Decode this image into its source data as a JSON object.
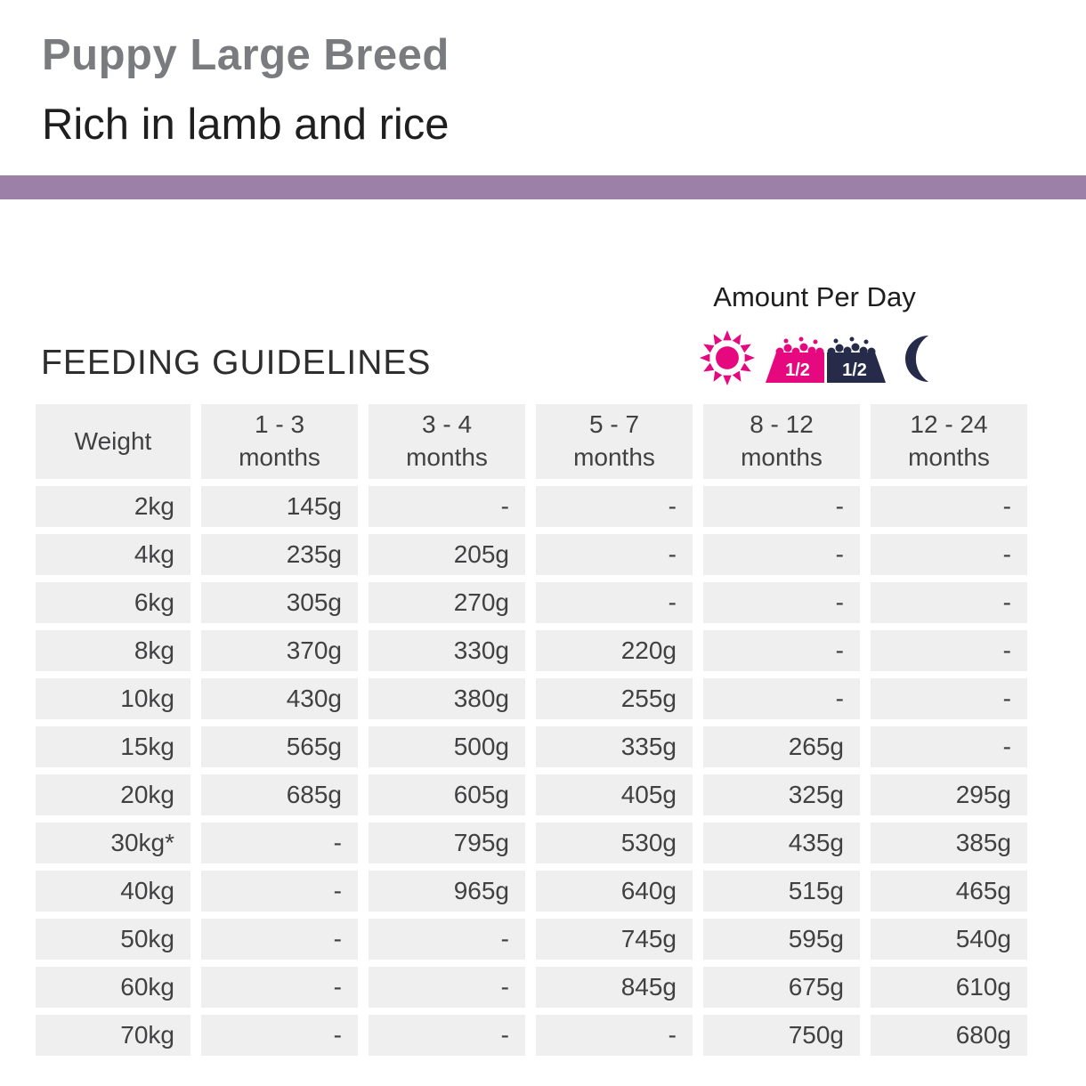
{
  "header": {
    "title": "Puppy Large Breed",
    "subtitle": "Rich in lamb and rice"
  },
  "amount_per_day": {
    "label": "Amount Per Day",
    "portion_morning": "1/2",
    "portion_evening": "1/2",
    "icons": [
      "sun-icon",
      "half-portion-morning",
      "half-portion-evening",
      "moon-icon"
    ]
  },
  "section": {
    "heading": "FEEDING GUIDELINES"
  },
  "table": {
    "columns": [
      "Weight",
      "1 - 3\nmonths",
      "3 - 4\nmonths",
      "5 - 7\nmonths",
      "8 - 12\nmonths",
      "12 - 24\nmonths"
    ],
    "rows": [
      [
        "2kg",
        "145g",
        "-",
        "-",
        "-",
        "-"
      ],
      [
        "4kg",
        "235g",
        "205g",
        "-",
        "-",
        "-"
      ],
      [
        "6kg",
        "305g",
        "270g",
        "-",
        "-",
        "-"
      ],
      [
        "8kg",
        "370g",
        "330g",
        "220g",
        "-",
        "-"
      ],
      [
        "10kg",
        "430g",
        "380g",
        "255g",
        "-",
        "-"
      ],
      [
        "15kg",
        "565g",
        "500g",
        "335g",
        "265g",
        "-"
      ],
      [
        "20kg",
        "685g",
        "605g",
        "405g",
        "325g",
        "295g"
      ],
      [
        "30kg*",
        "-",
        "795g",
        "530g",
        "435g",
        "385g"
      ],
      [
        "40kg",
        "-",
        "965g",
        "640g",
        "515g",
        "465g"
      ],
      [
        "50kg",
        "-",
        "-",
        "745g",
        "595g",
        "540g"
      ],
      [
        "60kg",
        "-",
        "-",
        "845g",
        "675g",
        "610g"
      ],
      [
        "70kg",
        "-",
        "-",
        "-",
        "750g",
        "680g"
      ]
    ]
  },
  "colors": {
    "accent_bar": "#9d80a8",
    "highlight_pink": "#e5087e",
    "navy": "#272b4a",
    "cell_background": "#efefef",
    "title_gray": "#7a7b7e",
    "table_text": "#414042"
  }
}
